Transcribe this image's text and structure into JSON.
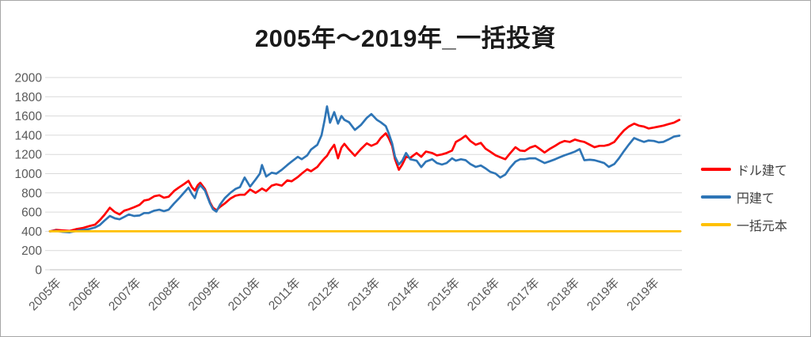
{
  "title": "2005年～2019年_一括投資",
  "legend": [
    {
      "label": "ドル建て",
      "color": "#ff0000"
    },
    {
      "label": "円建て",
      "color": "#2e75b6"
    },
    {
      "label": "一括元本",
      "color": "#ffc000"
    }
  ],
  "colors": {
    "gridline": "#d9d9d9",
    "axis_line": "#bfbfbf",
    "tick_label": "#595959",
    "frame_border": "#a6a6a6",
    "background": "#ffffff"
  },
  "chart_data": {
    "type": "line",
    "title": "2005年～2019年_一括投資",
    "xlabel": "",
    "ylabel": "",
    "grid": true,
    "legend_position": "right",
    "ylim": [
      0,
      2000
    ],
    "ytick_interval": 200,
    "yticks": [
      0,
      200,
      400,
      600,
      800,
      1000,
      1200,
      1400,
      1600,
      1800,
      2000
    ],
    "xticks": [
      "2005年",
      "2006年",
      "2007年",
      "2008年",
      "2009年",
      "2010年",
      "2011年",
      "2012年",
      "2013年",
      "2014年",
      "2015年",
      "2016年",
      "2017年",
      "2018年",
      "2019年",
      "2019年"
    ],
    "xlim": [
      2005,
      2019.96
    ],
    "x": [
      2005.0,
      2005.15,
      2005.3,
      2005.47,
      2005.64,
      2005.79,
      2005.94,
      2006.07,
      2006.18,
      2006.29,
      2006.42,
      2006.54,
      2006.65,
      2006.76,
      2006.87,
      2006.99,
      2007.12,
      2007.23,
      2007.34,
      2007.47,
      2007.59,
      2007.7,
      2007.81,
      2007.94,
      2008.05,
      2008.17,
      2008.28,
      2008.36,
      2008.43,
      2008.5,
      2008.56,
      2008.67,
      2008.79,
      2008.86,
      2008.94,
      2009.03,
      2009.14,
      2009.27,
      2009.39,
      2009.5,
      2009.61,
      2009.74,
      2009.87,
      2009.97,
      2010.02,
      2010.12,
      2010.25,
      2010.36,
      2010.49,
      2010.62,
      2010.72,
      2010.87,
      2010.96,
      2011.09,
      2011.18,
      2011.33,
      2011.43,
      2011.5,
      2011.56,
      2011.63,
      2011.73,
      2011.82,
      2011.9,
      2011.97,
      2012.08,
      2012.22,
      2012.36,
      2012.5,
      2012.61,
      2012.74,
      2012.83,
      2012.95,
      2013.02,
      2013.1,
      2013.17,
      2013.26,
      2013.34,
      2013.43,
      2013.53,
      2013.68,
      2013.79,
      2013.9,
      2014.05,
      2014.16,
      2014.28,
      2014.39,
      2014.52,
      2014.61,
      2014.73,
      2014.84,
      2014.95,
      2015.08,
      2015.2,
      2015.31,
      2015.42,
      2015.55,
      2015.66,
      2015.78,
      2015.89,
      2016.02,
      2016.13,
      2016.24,
      2016.36,
      2016.49,
      2016.6,
      2016.71,
      2016.84,
      2016.96,
      2017.07,
      2017.18,
      2017.31,
      2017.43,
      2017.54,
      2017.65,
      2017.78,
      2017.89,
      2018.01,
      2018.12,
      2018.23,
      2018.36,
      2018.47,
      2018.59,
      2018.7,
      2018.83,
      2018.94,
      2019.06,
      2019.17,
      2019.3,
      2019.41,
      2019.52,
      2019.64,
      2019.77,
      2019.9
    ],
    "series": [
      {
        "name": "ドル建て",
        "color": "#ff0000",
        "values": [
          400,
          415,
          410,
          405,
          425,
          435,
          455,
          470,
          515,
          570,
          645,
          600,
          575,
          615,
          630,
          650,
          675,
          720,
          730,
          765,
          775,
          750,
          760,
          820,
          855,
          890,
          925,
          860,
          825,
          880,
          905,
          840,
          700,
          645,
          620,
          655,
          690,
          740,
          770,
          780,
          780,
          835,
          800,
          830,
          845,
          820,
          875,
          890,
          875,
          930,
          920,
          965,
          1000,
          1045,
          1025,
          1070,
          1125,
          1160,
          1185,
          1240,
          1300,
          1160,
          1270,
          1310,
          1250,
          1185,
          1255,
          1315,
          1290,
          1315,
          1370,
          1420,
          1370,
          1290,
          1150,
          1040,
          1095,
          1175,
          1165,
          1215,
          1175,
          1230,
          1215,
          1190,
          1200,
          1215,
          1240,
          1330,
          1360,
          1395,
          1340,
          1300,
          1320,
          1260,
          1230,
          1190,
          1170,
          1150,
          1210,
          1275,
          1240,
          1235,
          1270,
          1290,
          1255,
          1220,
          1260,
          1290,
          1320,
          1340,
          1330,
          1355,
          1340,
          1330,
          1300,
          1275,
          1290,
          1290,
          1300,
          1330,
          1390,
          1450,
          1490,
          1520,
          1500,
          1490,
          1470,
          1480,
          1490,
          1500,
          1515,
          1530,
          1560
        ]
      },
      {
        "name": "円建て",
        "color": "#2e75b6",
        "values": [
          400,
          405,
          395,
          390,
          405,
          415,
          425,
          440,
          465,
          510,
          560,
          535,
          525,
          550,
          575,
          560,
          565,
          590,
          590,
          615,
          625,
          610,
          625,
          690,
          740,
          800,
          855,
          790,
          745,
          840,
          880,
          825,
          690,
          630,
          605,
          680,
          745,
          800,
          840,
          860,
          960,
          865,
          940,
          1000,
          1090,
          970,
          1010,
          1000,
          1040,
          1090,
          1125,
          1175,
          1150,
          1190,
          1250,
          1300,
          1400,
          1550,
          1700,
          1530,
          1640,
          1520,
          1600,
          1560,
          1535,
          1455,
          1505,
          1580,
          1620,
          1560,
          1535,
          1495,
          1420,
          1315,
          1175,
          1095,
          1135,
          1215,
          1150,
          1135,
          1068,
          1125,
          1150,
          1110,
          1095,
          1110,
          1160,
          1135,
          1150,
          1140,
          1100,
          1070,
          1085,
          1055,
          1020,
          1000,
          960,
          990,
          1060,
          1125,
          1150,
          1150,
          1160,
          1160,
          1135,
          1110,
          1130,
          1150,
          1170,
          1190,
          1210,
          1230,
          1255,
          1140,
          1145,
          1140,
          1125,
          1110,
          1070,
          1100,
          1160,
          1235,
          1300,
          1370,
          1350,
          1330,
          1345,
          1340,
          1325,
          1330,
          1355,
          1385,
          1395
        ]
      },
      {
        "name": "一括元本",
        "color": "#ffc000",
        "constant": 400
      }
    ]
  }
}
